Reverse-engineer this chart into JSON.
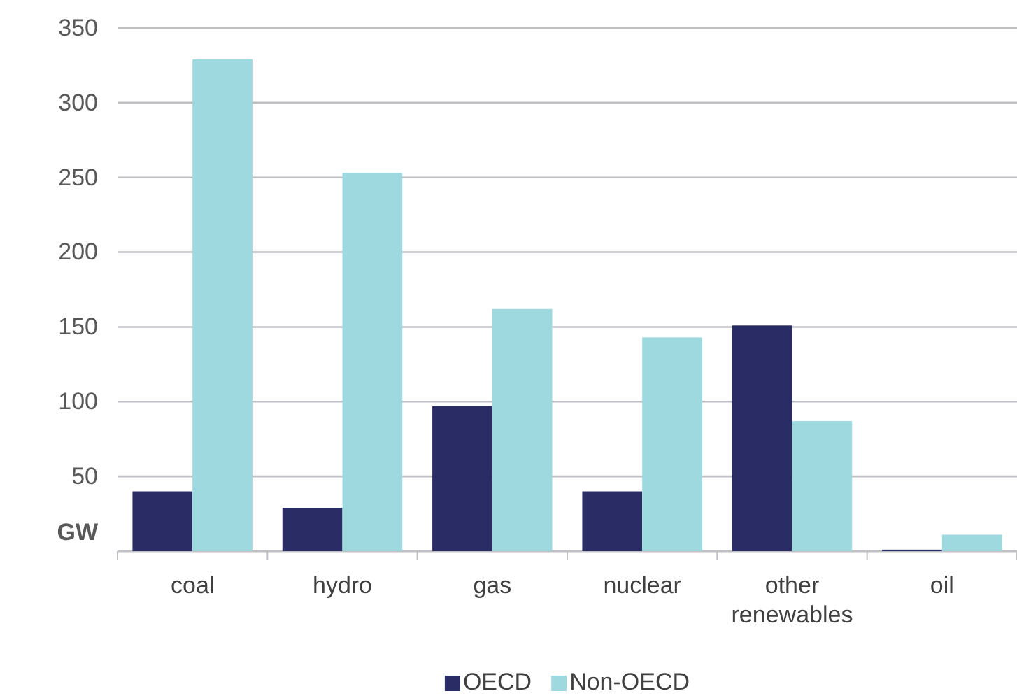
{
  "chart_data": {
    "type": "bar",
    "ylabel": "GW",
    "categories": [
      "coal",
      "hydro",
      "gas",
      "nuclear",
      "other renewables",
      "oil"
    ],
    "series": [
      {
        "name": "OECD",
        "color": "#2a2c66",
        "values": [
          40,
          29,
          97,
          40,
          151,
          1
        ]
      },
      {
        "name": "Non-OECD",
        "color": "#9fd9e0",
        "values": [
          329,
          253,
          162,
          143,
          87,
          11
        ]
      }
    ],
    "ylim": [
      0,
      350
    ],
    "yticks": [
      50,
      100,
      150,
      200,
      250,
      300,
      350
    ],
    "grid": "y",
    "legend": "bottom"
  }
}
